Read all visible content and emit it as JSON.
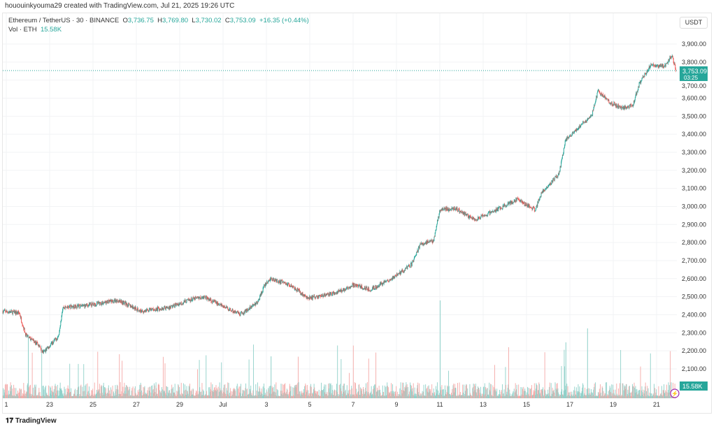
{
  "credit": "hououinkyouma29 created with TradingView.com, Jul 21, 2025 19:26 UTC",
  "legend": {
    "symbol": "Ethereum / TetherUS · 30 · BINANCE",
    "o_label": "O",
    "o": "3,736.75",
    "h_label": "H",
    "h": "3,769.80",
    "l_label": "L",
    "l": "3,730.02",
    "c_label": "C",
    "c": "3,753.09",
    "change": "+16.35 (+0.44%)",
    "vol_label": "Vol · ETH",
    "vol": "15.58K"
  },
  "currency": "USDT",
  "price_tag": {
    "price": "3,753.09",
    "countdown": "03:25"
  },
  "vol_tag": "15.58K",
  "logo": "TradingView",
  "colors": {
    "up": "#26a69a",
    "down": "#ef5350",
    "vol_up": "#8fd0c9",
    "vol_down": "#f4a9a7"
  },
  "chart_data": {
    "type": "candlestick",
    "title": "Ethereum / TetherUS · 30 · BINANCE",
    "ylim": [
      2050,
      3960
    ],
    "y_ticks": [
      "3,900.00",
      "3,800.00",
      "3,700.00",
      "3,600.00",
      "3,500.00",
      "3,400.00",
      "3,300.00",
      "3,200.00",
      "3,100.00",
      "3,000.00",
      "2,900.00",
      "2,800.00",
      "2,700.00",
      "2,600.00",
      "2,500.00",
      "2,400.00",
      "2,300.00",
      "2,200.00",
      "2,100.00"
    ],
    "y_tick_values": [
      3900,
      3800,
      3700,
      3600,
      3500,
      3400,
      3300,
      3200,
      3100,
      3000,
      2900,
      2800,
      2700,
      2600,
      2500,
      2400,
      2300,
      2200,
      2100
    ],
    "x_ticks": [
      "1",
      "23",
      "25",
      "27",
      "29",
      "Jul",
      "3",
      "5",
      "7",
      "9",
      "11",
      "13",
      "15",
      "17",
      "19",
      "21"
    ],
    "x_tick_days": [
      0,
      2,
      4,
      6,
      8,
      10,
      12,
      14,
      16,
      18,
      20,
      22,
      24,
      26,
      28,
      30
    ],
    "price_path_days_since_jun21": [
      [
        -0.2,
        2420
      ],
      [
        0.6,
        2410
      ],
      [
        0.9,
        2285
      ],
      [
        1.5,
        2230
      ],
      [
        1.7,
        2190
      ],
      [
        2.4,
        2280
      ],
      [
        2.6,
        2440
      ],
      [
        3.6,
        2450
      ],
      [
        5.2,
        2480
      ],
      [
        6.2,
        2420
      ],
      [
        7.5,
        2440
      ],
      [
        8.4,
        2480
      ],
      [
        9.1,
        2500
      ],
      [
        10.8,
        2400
      ],
      [
        11.6,
        2470
      ],
      [
        11.9,
        2560
      ],
      [
        12.2,
        2600
      ],
      [
        13.2,
        2560
      ],
      [
        13.9,
        2490
      ],
      [
        15.2,
        2520
      ],
      [
        16,
        2565
      ],
      [
        16.8,
        2540
      ],
      [
        17.8,
        2600
      ],
      [
        18.7,
        2680
      ],
      [
        19.1,
        2790
      ],
      [
        19.7,
        2810
      ],
      [
        20,
        2980
      ],
      [
        20.7,
        2990
      ],
      [
        21.6,
        2925
      ],
      [
        22.6,
        2980
      ],
      [
        23.6,
        3040
      ],
      [
        24.4,
        2980
      ],
      [
        24.7,
        3080
      ],
      [
        25.5,
        3180
      ],
      [
        25.8,
        3370
      ],
      [
        26.5,
        3450
      ],
      [
        27,
        3500
      ],
      [
        27.3,
        3640
      ],
      [
        27.8,
        3580
      ],
      [
        28.4,
        3545
      ],
      [
        28.9,
        3560
      ],
      [
        29.2,
        3680
      ],
      [
        29.7,
        3780
      ],
      [
        30.4,
        3780
      ],
      [
        30.7,
        3840
      ],
      [
        30.9,
        3753
      ]
    ],
    "last_price": 3753.09,
    "volume_last": "15.58K"
  }
}
